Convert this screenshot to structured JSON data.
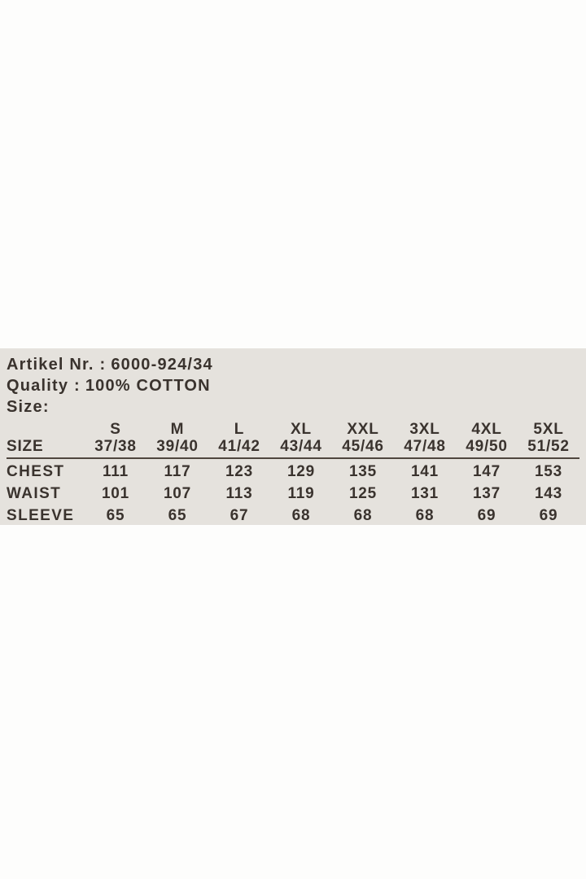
{
  "document": {
    "artikel": {
      "label": "Artikel Nr. :",
      "value": "6000-924/34"
    },
    "quality": {
      "label": "Quality :",
      "value": "100% COTTON"
    },
    "size_heading": "Size:"
  },
  "table": {
    "row_header": "SIZE",
    "columns": [
      {
        "name": "S",
        "range": "37/38"
      },
      {
        "name": "M",
        "range": "39/40"
      },
      {
        "name": "L",
        "range": "41/42"
      },
      {
        "name": "XL",
        "range": "43/44"
      },
      {
        "name": "XXL",
        "range": "45/46"
      },
      {
        "name": "3XL",
        "range": "47/48"
      },
      {
        "name": "4XL",
        "range": "49/50"
      },
      {
        "name": "5XL",
        "range": "51/52"
      }
    ],
    "rows": [
      {
        "label": "CHEST",
        "values": [
          "111",
          "117",
          "123",
          "129",
          "135",
          "141",
          "147",
          "153"
        ]
      },
      {
        "label": "WAIST",
        "values": [
          "101",
          "107",
          "113",
          "119",
          "125",
          "131",
          "137",
          "143"
        ]
      },
      {
        "label": "SLEEVE",
        "values": [
          "65",
          "65",
          "67",
          "68",
          "68",
          "68",
          "69",
          "69"
        ]
      }
    ]
  },
  "colors": {
    "page_background": "#fdfdfc",
    "panel_background": "#e5e2dd",
    "text": "#3a332e",
    "rule": "#4f463e"
  }
}
